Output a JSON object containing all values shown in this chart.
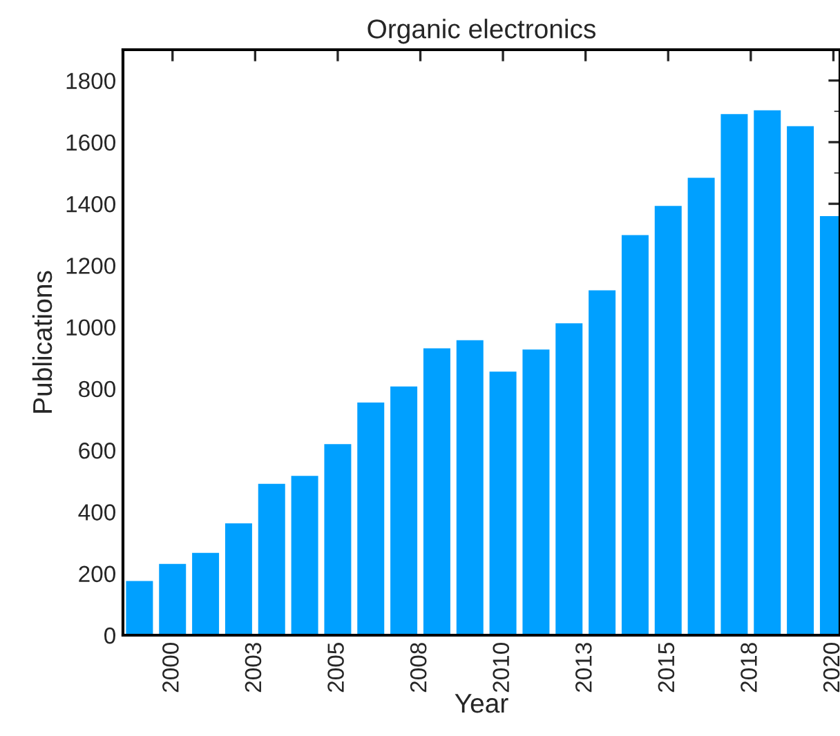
{
  "chart_data": {
    "type": "bar",
    "title": "Organic electronics",
    "xlabel": "Year",
    "ylabel": "Publications",
    "x": [
      1999,
      2000,
      2001,
      2002,
      2003,
      2004,
      2005,
      2006,
      2007,
      2008,
      2009,
      2010,
      2011,
      2012,
      2013,
      2014,
      2015,
      2016,
      2017,
      2018,
      2019,
      2020
    ],
    "values": [
      178,
      233,
      269,
      365,
      493,
      519,
      622,
      757,
      809,
      933,
      959,
      857,
      929,
      1014,
      1121,
      1300,
      1395,
      1486,
      1693,
      1705,
      1654,
      1362
    ],
    "color": "#00a0ff",
    "xlim": [
      1998.5,
      2020.2
    ],
    "xticks": [
      2000,
      {
        "value": 2002.5,
        "label": "2003"
      },
      2005,
      {
        "value": 2007.5,
        "label": "2008"
      },
      2010,
      {
        "value": 2012.5,
        "label": "2013"
      },
      2015,
      {
        "value": 2017.5,
        "label": "2018"
      },
      2020
    ],
    "ylim": [
      0,
      1900
    ],
    "yticks": [
      0,
      200,
      400,
      600,
      800,
      1000,
      1200,
      1400,
      1600,
      1800
    ],
    "grid": false,
    "legend": false
  }
}
